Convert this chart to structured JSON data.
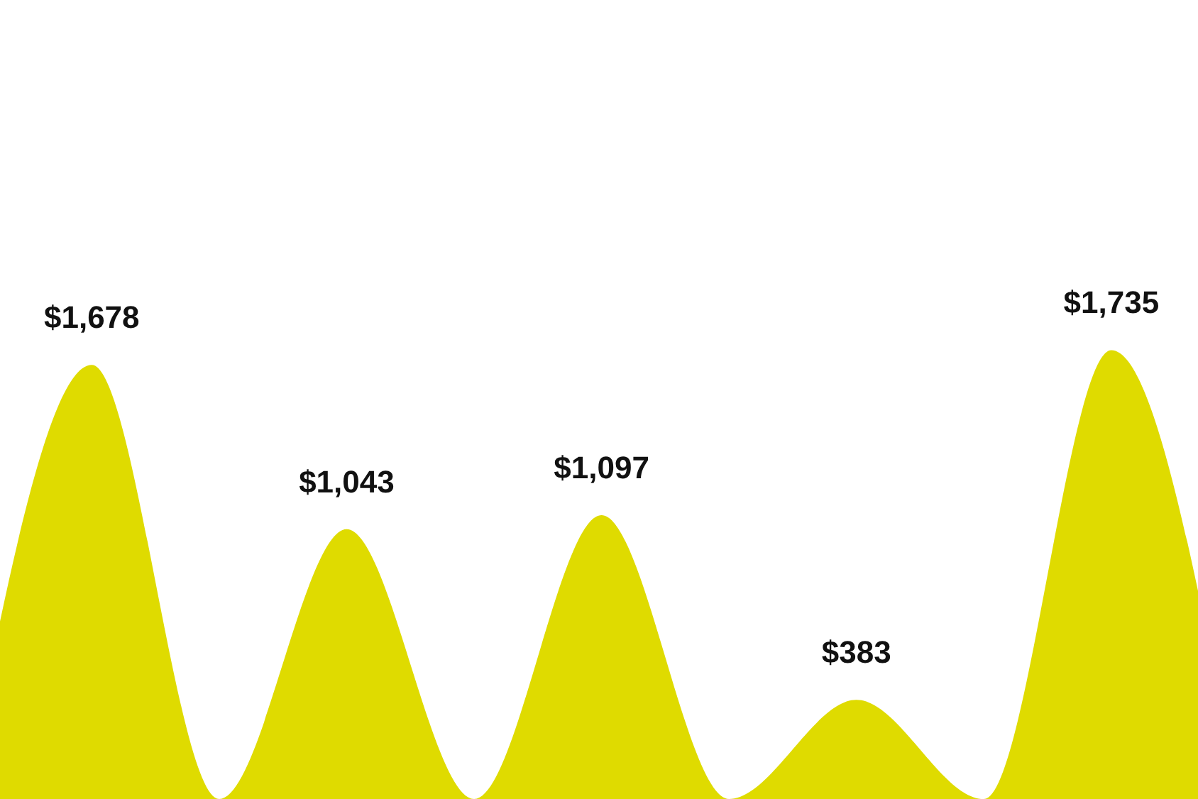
{
  "chart_data": {
    "type": "area",
    "categories": [
      null,
      null,
      null,
      null,
      null,
      null,
      null,
      null,
      null,
      null,
      null
    ],
    "series": [
      {
        "color": "#dfdb00",
        "values": [
          0,
          1678,
          0,
          1043,
          0,
          1097,
          0,
          383,
          0,
          1735,
          0
        ],
        "value_labels": [
          null,
          "$1,678",
          null,
          "$1,043",
          null,
          "$1,097",
          null,
          "$383",
          null,
          "$1,735",
          null
        ]
      }
    ]
  }
}
